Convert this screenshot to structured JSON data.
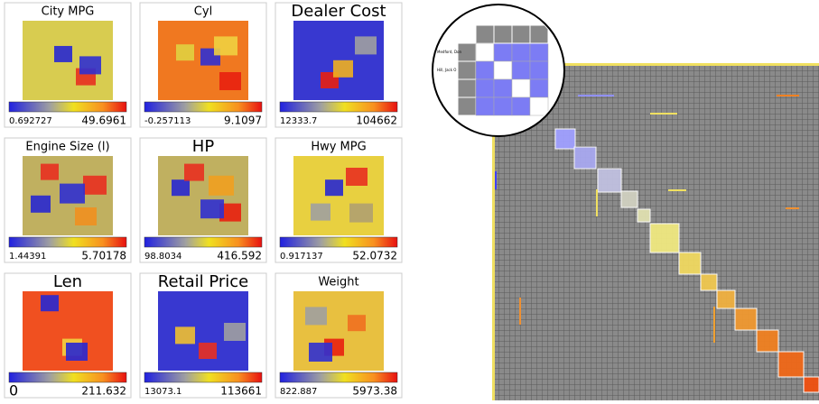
{
  "panels": [
    {
      "title": "City MPG",
      "min": "0.692727",
      "max": "49.6961"
    },
    {
      "title": "Cyl",
      "min": "-0.257113",
      "max": "9.1097"
    },
    {
      "title": "Dealer Cost",
      "min": "12333.7",
      "max": "104662"
    },
    {
      "title": "Engine Size (l)",
      "min": "1.44391",
      "max": "5.70178"
    },
    {
      "title": "HP",
      "min": "98.8034",
      "max": "416.592"
    },
    {
      "title": "Hwy MPG",
      "min": "0.917137",
      "max": "52.0732"
    },
    {
      "title": "Len",
      "min": "0",
      "max": "211.632"
    },
    {
      "title": "Retail Price",
      "min": "13073.1",
      "max": "113661"
    },
    {
      "title": "Weight",
      "min": "822.887",
      "max": "5973.38"
    }
  ],
  "lens": {
    "labels": [
      "Medford, Don",
      "Hill, Jack O"
    ]
  }
}
